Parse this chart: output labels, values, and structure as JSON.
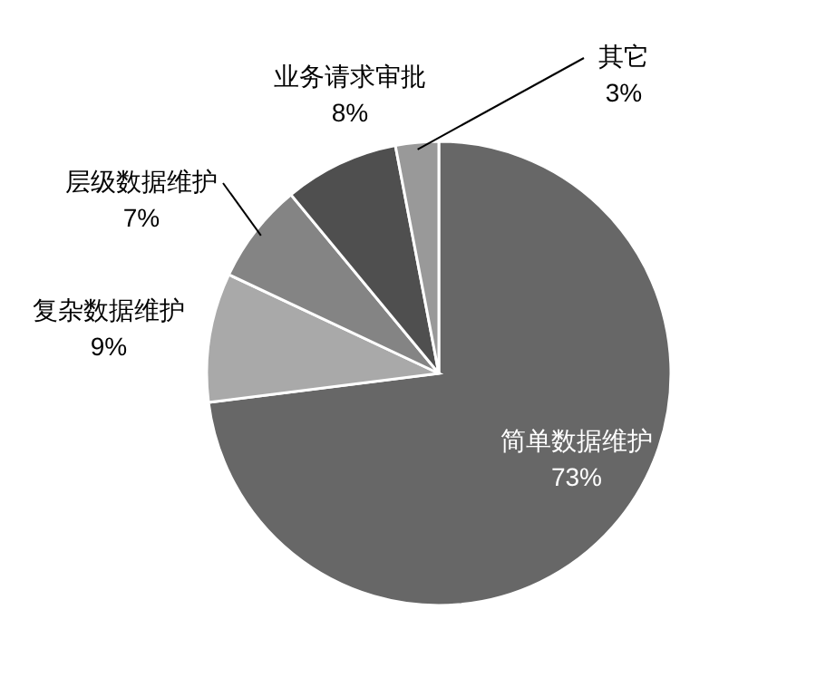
{
  "chart_data": {
    "type": "pie",
    "categories": [
      "简单数据维护",
      "复杂数据维护",
      "层级数据维护",
      "业务请求审批",
      "其它"
    ],
    "values": [
      73,
      9,
      7,
      8,
      3
    ],
    "colors": [
      "#676767",
      "#a9a9a9",
      "#848484",
      "#4f4f4f",
      "#999999"
    ],
    "value_labels": [
      "73%",
      "9%",
      "7%",
      "8%",
      "3%"
    ]
  }
}
